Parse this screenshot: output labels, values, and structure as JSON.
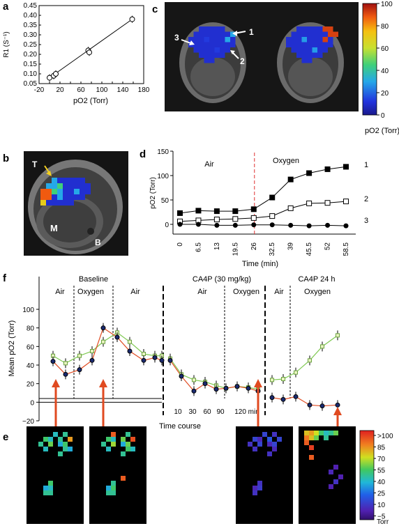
{
  "panel_letters": {
    "a": "a",
    "b": "b",
    "c": "c",
    "d": "d",
    "e": "e",
    "f": "f"
  },
  "panel_a": {
    "ylabel": "R1 (S⁻¹)",
    "xlabel": "pO2 (Torr)"
  },
  "panel_b": {
    "label_T": "T",
    "label_M": "M",
    "label_B": "B"
  },
  "panel_c": {
    "region_labels": [
      "1",
      "2",
      "3"
    ],
    "colorbar_ticks": [
      "100",
      "80",
      "60",
      "40",
      "20",
      "0"
    ],
    "colorbar_title": "pO2 (Torr)"
  },
  "panel_d": {
    "ylabel": "pO2 (Torr)",
    "xlabel": "Time (min)",
    "air_label": "Air",
    "oxygen_label": "Oxygen",
    "series_labels": [
      "1",
      "2",
      "3"
    ]
  },
  "panel_f": {
    "ylabel": "Mean pO2 (Torr)",
    "group_labels": [
      "Baseline",
      "CA4P (30 mg/kg)",
      "CA4P 24 h"
    ],
    "sub_labels": [
      "Air",
      "Oxygen",
      "Air",
      "Air",
      "Oxygen",
      "Air",
      "Oxygen"
    ],
    "time_ticks": [
      "10",
      "30",
      "60",
      "90",
      "120 min"
    ],
    "xlabel": "Time course"
  },
  "panel_e": {
    "colorbar_ticks": [
      ">100",
      "85",
      "70",
      "55",
      "40",
      "25",
      "10",
      "−5"
    ],
    "colorbar_unit": "Torr"
  },
  "chart_data": [
    {
      "type": "scatter",
      "panel": "a",
      "xlabel": "pO2 (Torr)",
      "ylabel": "R1 (S⁻¹)",
      "xlim": [
        -20,
        180
      ],
      "ylim": [
        0.05,
        0.45
      ],
      "xticks": [
        -20,
        0,
        20,
        40,
        60,
        80,
        100,
        120,
        140,
        160,
        180
      ],
      "yticks": [
        0.05,
        0.1,
        0.15,
        0.2,
        0.25,
        0.3,
        0.35,
        0.4,
        0.45
      ],
      "x": [
        0,
        8,
        12,
        74,
        76,
        158
      ],
      "y": [
        0.08,
        0.09,
        0.1,
        0.22,
        0.21,
        0.38
      ],
      "fit_line": [
        [
          0,
          0.08
        ],
        [
          158,
          0.38
        ]
      ]
    },
    {
      "type": "line",
      "panel": "d",
      "xlabel": "Time (min)",
      "ylabel": "pO2 (Torr)",
      "ylim": [
        -20,
        150
      ],
      "yticks": [
        0,
        50,
        100,
        150
      ],
      "categories": [
        "0",
        "6.5",
        "13",
        "19.5",
        "26",
        "32.5",
        "39",
        "45.5",
        "52",
        "58.5"
      ],
      "switch_at": "26",
      "series": [
        {
          "name": "1",
          "values": [
            23,
            28,
            27,
            27,
            31,
            55,
            92,
            105,
            113,
            118
          ]
        },
        {
          "name": "2",
          "values": [
            6,
            8,
            10,
            11,
            13,
            17,
            33,
            43,
            44,
            47
          ]
        },
        {
          "name": "3",
          "values": [
            0,
            0,
            -2,
            -2,
            -1,
            -1,
            -2,
            -3,
            -2,
            -3
          ]
        }
      ]
    },
    {
      "type": "line",
      "panel": "f",
      "ylabel": "Mean pO2 (Torr)",
      "xlabel": "Time course",
      "ylim": [
        -20,
        100
      ],
      "yticks": [
        -20,
        0,
        20,
        40,
        60,
        80,
        100
      ],
      "series": [
        {
          "name": "orange",
          "values": [
            44,
            30,
            35,
            45,
            80,
            70,
            55,
            45,
            48,
            45,
            45,
            28,
            12,
            20,
            14,
            15,
            17,
            15,
            12,
            5,
            3,
            6,
            -3,
            -4,
            -3
          ]
        },
        {
          "name": "green",
          "values": [
            50,
            42,
            50,
            55,
            65,
            75,
            65,
            52,
            50,
            50,
            47,
            30,
            24,
            22,
            18,
            15,
            17,
            16,
            14,
            24,
            25,
            32,
            45,
            60,
            72
          ]
        }
      ]
    }
  ]
}
